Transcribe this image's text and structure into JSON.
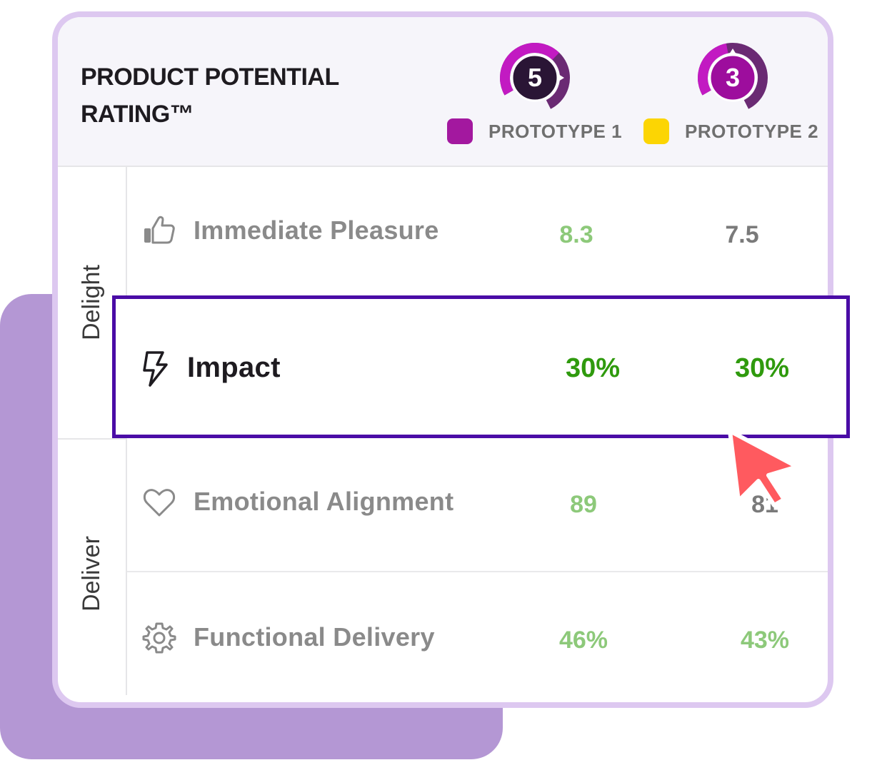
{
  "card": {
    "title": "PRODUCT POTENTIAL RATING™"
  },
  "prototypes": [
    {
      "label": "PROTOTYPE 1",
      "score": "5",
      "swatch_color": "#a3189f",
      "gauge_color": "#b010b0"
    },
    {
      "label": "PROTOTYPE 2",
      "score": "3",
      "swatch_color": "#fcd503",
      "gauge_color": "#b010b0"
    }
  ],
  "groups": [
    {
      "label": "Delight"
    },
    {
      "label": "Deliver"
    }
  ],
  "rows": [
    {
      "label": "Immediate Pleasure",
      "icon": "thumbs-up-icon",
      "value_1": "8.3",
      "value_2": "7.5",
      "value_1_color": "#8dc97a",
      "value_2_color": "#7a7a7a"
    },
    {
      "label": "Impact",
      "icon": "lightning-bolt-icon",
      "value_1": "30%",
      "value_2": "30%",
      "value_color": "#2f9a0d"
    },
    {
      "label": "Emotional Alignment",
      "icon": "heart-icon",
      "value_1": "89",
      "value_2": "81",
      "value_1_color": "#8dc97a"
    },
    {
      "label": "Functional Delivery",
      "icon": "gear-icon",
      "value_1": "46%",
      "value_2": "43%",
      "value_1_color": "#8dc97a",
      "value_2_color": "#8dc97a"
    }
  ],
  "colors": {
    "background_block": "#b497d4",
    "card_border": "#ddc8f0",
    "highlight_border": "#4a0ca6",
    "cursor": "#ff5a5f"
  }
}
